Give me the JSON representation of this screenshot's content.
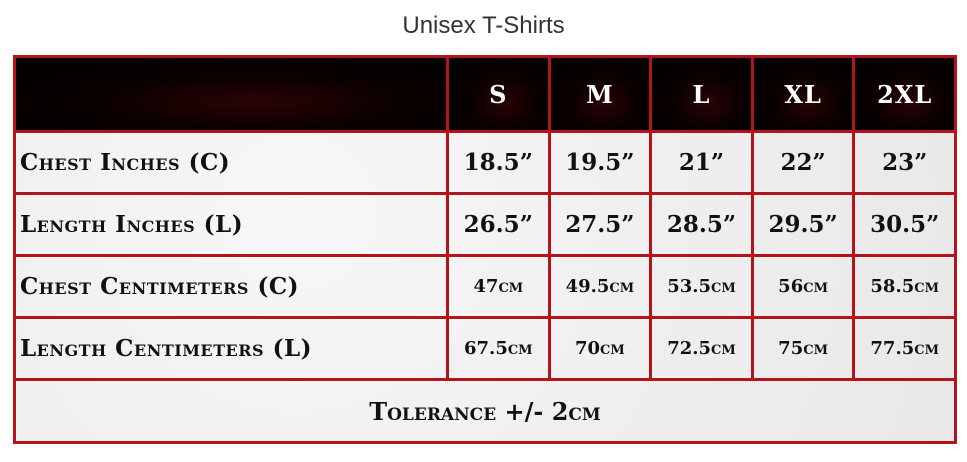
{
  "title": "Unisex T-Shirts",
  "table": {
    "sizes": [
      "S",
      "M",
      "L",
      "XL",
      "2XL"
    ],
    "rows": [
      {
        "label": "Chest Inches (C)",
        "values": [
          "18.5”",
          "19.5”",
          "21”",
          "22”",
          "23”"
        ]
      },
      {
        "label": "Length Inches (L)",
        "values": [
          "26.5”",
          "27.5”",
          "28.5”",
          "29.5”",
          "30.5”"
        ]
      },
      {
        "label": "Chest Centimeters (C)",
        "values": [
          "47cm",
          "49.5cm",
          "53.5cm",
          "56cm",
          "58.5cm"
        ]
      },
      {
        "label": "Length Centimeters (L)",
        "values": [
          "67.5cm",
          "70cm",
          "72.5cm",
          "75cm",
          "77.5cm"
        ]
      }
    ],
    "tolerance": "Tolerance +/- 2cm"
  },
  "colors": {
    "border": "#b3141b",
    "header_bg": "#000000"
  }
}
